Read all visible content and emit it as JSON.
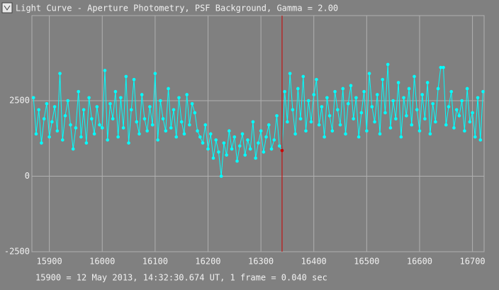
{
  "chart_data": {
    "type": "line",
    "title": "Light Curve - Aperture Photometry, PSF Background, Gamma = 2.00",
    "footer": "15900 = 12 May 2013, 14:32:30.674 UT, 1 frame = 0.040 sec",
    "xlim": [
      15867,
      16722
    ],
    "ylim": [
      -2500,
      5317
    ],
    "xticks": [
      15900,
      16000,
      16100,
      16200,
      16300,
      16400,
      16500,
      16600,
      16700
    ],
    "yticks": [
      -2500,
      0,
      2500
    ],
    "grid": true,
    "cursor_x": 16340,
    "cursor_color": "#cc0000",
    "x": [
      15870,
      15875,
      15880,
      15885,
      15890,
      15895,
      15900,
      15905,
      15910,
      15915,
      15920,
      15925,
      15930,
      15935,
      15940,
      15945,
      15950,
      15955,
      15960,
      15965,
      15970,
      15975,
      15980,
      15985,
      15990,
      15995,
      16000,
      16005,
      16010,
      16015,
      16020,
      16025,
      16030,
      16035,
      16040,
      16045,
      16050,
      16055,
      16060,
      16065,
      16070,
      16075,
      16080,
      16085,
      16090,
      16095,
      16100,
      16105,
      16110,
      16115,
      16120,
      16125,
      16130,
      16135,
      16140,
      16145,
      16150,
      16155,
      16160,
      16165,
      16170,
      16175,
      16180,
      16185,
      16190,
      16195,
      16200,
      16205,
      16210,
      16215,
      16220,
      16225,
      16230,
      16235,
      16240,
      16245,
      16250,
      16255,
      16260,
      16265,
      16270,
      16275,
      16280,
      16285,
      16290,
      16295,
      16300,
      16305,
      16310,
      16315,
      16320,
      16325,
      16330,
      16335,
      16340,
      16345,
      16350,
      16355,
      16360,
      16365,
      16370,
      16375,
      16380,
      16385,
      16390,
      16395,
      16400,
      16405,
      16410,
      16415,
      16420,
      16425,
      16430,
      16435,
      16440,
      16445,
      16450,
      16455,
      16460,
      16465,
      16470,
      16475,
      16480,
      16485,
      16490,
      16495,
      16500,
      16505,
      16510,
      16515,
      16520,
      16525,
      16530,
      16535,
      16540,
      16545,
      16550,
      16555,
      16560,
      16565,
      16570,
      16575,
      16580,
      16585,
      16590,
      16595,
      16600,
      16605,
      16610,
      16615,
      16620,
      16625,
      16630,
      16635,
      16640,
      16645,
      16650,
      16655,
      16660,
      16665,
      16670,
      16675,
      16680,
      16685,
      16690,
      16695,
      16700,
      16705,
      16710,
      16715,
      16720
    ],
    "series": [
      {
        "color": "#00ffff",
        "values": [
          2600,
          1400,
          2200,
          1100,
          1900,
          2400,
          1300,
          1800,
          2300,
          1500,
          3400,
          1200,
          2000,
          2500,
          1700,
          900,
          1600,
          2800,
          1300,
          2200,
          1100,
          2600,
          1900,
          1400,
          2300,
          1700,
          1600,
          3500,
          1200,
          2400,
          1900,
          2800,
          1300,
          2600,
          1600,
          3300,
          1100,
          2200,
          3200,
          1800,
          1400,
          2700,
          1900,
          1500,
          2300,
          1700,
          3400,
          1200,
          2500,
          1900,
          1500,
          2900,
          1600,
          2200,
          1300,
          2600,
          1800,
          1400,
          2700,
          1700,
          2400,
          2100,
          1500,
          1300,
          1100,
          1700,
          900,
          1400,
          600,
          1200,
          800,
          0,
          1100,
          700,
          1500,
          900,
          1300,
          500,
          1000,
          1400,
          700,
          1200,
          900,
          1800,
          600,
          1100,
          1500,
          800,
          1300,
          1700,
          900,
          1200,
          2000,
          1000,
          850,
          2800,
          1800,
          3400,
          2200,
          1400,
          2900,
          1900,
          3300,
          1500,
          2500,
          1800,
          2700,
          3200,
          1700,
          2300,
          1300,
          2600,
          2000,
          1500,
          2800,
          2200,
          1700,
          2900,
          1400,
          2400,
          3000,
          1900,
          2600,
          1300,
          2100,
          2800,
          1500,
          3400,
          2300,
          1800,
          2700,
          1400,
          3200,
          2100,
          3700,
          1600,
          2500,
          1900,
          3100,
          1300,
          2600,
          2000,
          2900,
          1700,
          3300,
          2200,
          1500,
          2700,
          1900,
          3100,
          1400,
          2400,
          1800,
          2900,
          3600,
          3600,
          1700,
          2300,
          2800,
          1600,
          2200,
          2000,
          2500,
          1500,
          2900,
          1800,
          2100,
          1300,
          2600,
          1200,
          2800
        ]
      }
    ]
  }
}
